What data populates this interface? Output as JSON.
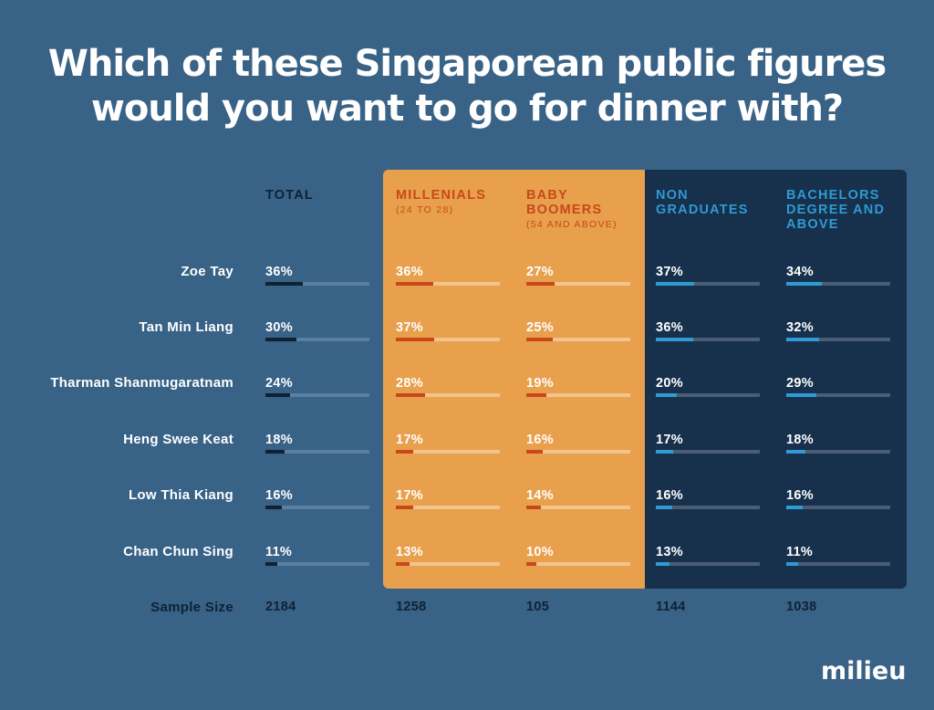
{
  "chart_data": {
    "type": "table",
    "title": "Which of these Singaporean public figures would you want to go for dinner with?",
    "columns": [
      {
        "key": "total",
        "label": "TOTAL",
        "sub": "",
        "sample_size": "2184",
        "colors": {
          "head": "#0f2135",
          "fill": "#0f2135",
          "track": "#5b7fa1"
        }
      },
      {
        "key": "millenials",
        "label": "MILLENIALS",
        "sub": "(24 TO 28)",
        "sample_size": "1258",
        "colors": {
          "head": "#c8481c",
          "fill": "#c8481c",
          "track": "#f2c38d"
        }
      },
      {
        "key": "baby_boomers",
        "label": "BABY BOOMERS",
        "sub": "(54 AND ABOVE)",
        "sample_size": "105",
        "colors": {
          "head": "#c8481c",
          "fill": "#c8481c",
          "track": "#f2c38d"
        }
      },
      {
        "key": "non_graduates",
        "label": "NON GRADUATES",
        "sub": "",
        "sample_size": "1144",
        "colors": {
          "head": "#2f9ad3",
          "fill": "#2f9ad3",
          "track": "#4a5d74"
        }
      },
      {
        "key": "bachelors",
        "label": "BACHELORS DEGREE AND ABOVE",
        "sub": "",
        "sample_size": "1038",
        "colors": {
          "head": "#2f9ad3",
          "fill": "#2f9ad3",
          "track": "#4a5d74"
        }
      }
    ],
    "rows": [
      {
        "name": "Zoe Tay",
        "values": [
          36,
          36,
          27,
          37,
          34
        ]
      },
      {
        "name": "Tan Min Liang",
        "values": [
          30,
          37,
          25,
          36,
          32
        ]
      },
      {
        "name": "Tharman Shanmugaratnam",
        "values": [
          24,
          28,
          19,
          20,
          29
        ]
      },
      {
        "name": "Heng Swee Keat",
        "values": [
          18,
          17,
          16,
          17,
          18
        ]
      },
      {
        "name": "Low Thia Kiang",
        "values": [
          16,
          17,
          14,
          16,
          16
        ]
      },
      {
        "name": "Chan Chun Sing",
        "values": [
          11,
          13,
          10,
          13,
          11
        ]
      }
    ],
    "sample_size_label": "Sample Size",
    "value_suffix": "%",
    "bar_max": 100
  },
  "colors": {
    "background": "#386286",
    "orange_panel": "#e8a04c",
    "navy_panel": "#17304c"
  },
  "logo": "milieu"
}
